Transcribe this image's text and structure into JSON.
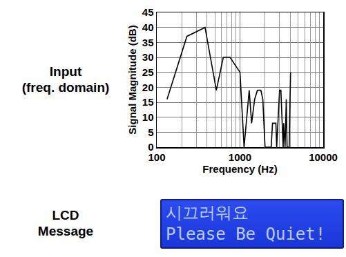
{
  "chart_data": {
    "type": "line",
    "x": [
      133,
      230,
      380,
      520,
      630,
      760,
      1000,
      1120,
      1290,
      1380,
      1500,
      1620,
      1780,
      1880,
      2000,
      2370,
      2460,
      2700,
      2760,
      2990,
      3100,
      3300,
      3350,
      3480,
      3600,
      3680,
      3900,
      4050
    ],
    "values": [
      16,
      37,
      40,
      19,
      30,
      30,
      25,
      0,
      19,
      8,
      16,
      19,
      19,
      16,
      0,
      0,
      8,
      8,
      0,
      19,
      19,
      0,
      8,
      0,
      16,
      0,
      0,
      25
    ],
    "color": "#000000",
    "xlabel": "Frequency (Hz)",
    "ylabel": "Signal Magnitude (dB)",
    "xlim": [
      100,
      10000
    ],
    "xticks": [
      100,
      1000,
      10000
    ],
    "ylim": [
      0,
      45
    ],
    "yticks": [
      0,
      5,
      10,
      15,
      20,
      25,
      30,
      35,
      40,
      45
    ],
    "log": "x",
    "grid": true
  },
  "input_label": [
    "Input",
    "(freq. domain)"
  ],
  "lcd_label": [
    "LCD",
    "Message"
  ],
  "lcd_message": [
    "시끄러워요",
    "Please Be Quiet!"
  ]
}
